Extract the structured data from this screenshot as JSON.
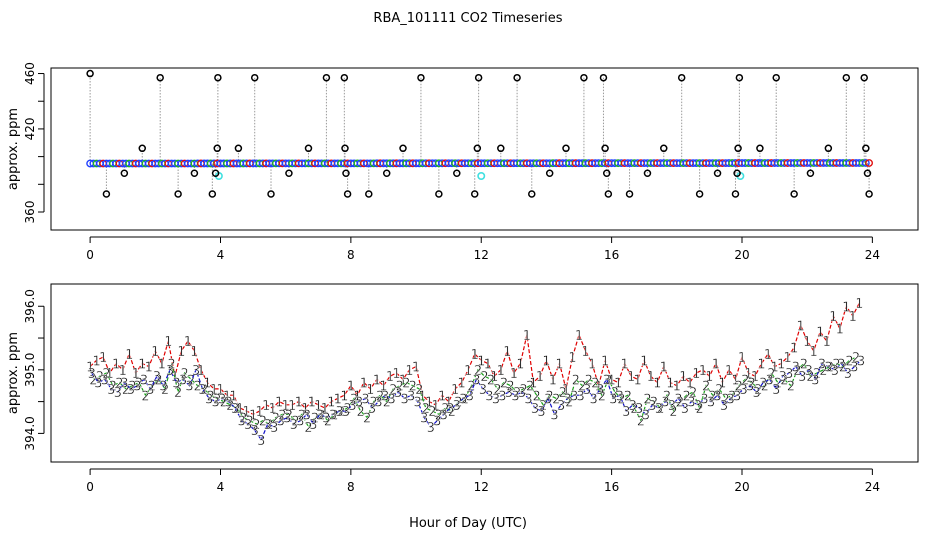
{
  "title": "RBA_101111  CO2 Timeseries",
  "xlabel": "Hour of Day (UTC)",
  "colors": {
    "frame": "#000000",
    "grey_line": "#9a9a9a",
    "series1": "#e00000",
    "series2": "#1aa01a",
    "series3": "#1010c8",
    "marker_blue": "#2040ff",
    "marker_cyan": "#40e0e0",
    "marker_green": "#20b020",
    "marker_red": "#e01010"
  },
  "chart_data": [
    {
      "type": "scatter",
      "name": "top-panel",
      "ylabel": "approx. ppm",
      "xlim": [
        -1.2,
        25.4
      ],
      "ylim": [
        347,
        464
      ],
      "xticks": [
        0,
        4,
        8,
        12,
        16,
        20,
        24
      ],
      "xtick_labels": [
        "0",
        "4",
        "8",
        "12",
        "16",
        "20",
        "24"
      ],
      "yticks": [
        360,
        380,
        400,
        420,
        440,
        460
      ],
      "ytick_labels": [
        "360",
        "",
        "",
        "420",
        "",
        "460"
      ],
      "baseline": {
        "start_ppm": 395.0,
        "end_ppm": 395.4,
        "spacing_h": 0.1
      },
      "cyan_points": [
        [
          3.95,
          386
        ],
        [
          12.0,
          386
        ],
        [
          19.95,
          386
        ]
      ],
      "outliers": [
        [
          0.0,
          460
        ],
        [
          0.5,
          373
        ],
        [
          1.05,
          388
        ],
        [
          1.6,
          406
        ],
        [
          2.15,
          457
        ],
        [
          2.7,
          373
        ],
        [
          3.2,
          388
        ],
        [
          3.75,
          373
        ],
        [
          3.85,
          388
        ],
        [
          3.9,
          406
        ],
        [
          3.92,
          457
        ],
        [
          4.55,
          406
        ],
        [
          5.05,
          457
        ],
        [
          5.55,
          373
        ],
        [
          6.1,
          388
        ],
        [
          6.7,
          406
        ],
        [
          7.25,
          457
        ],
        [
          7.8,
          457
        ],
        [
          7.82,
          406
        ],
        [
          7.85,
          388
        ],
        [
          7.9,
          373
        ],
        [
          8.55,
          373
        ],
        [
          9.1,
          388
        ],
        [
          9.6,
          406
        ],
        [
          10.15,
          457
        ],
        [
          10.7,
          373
        ],
        [
          11.25,
          388
        ],
        [
          11.8,
          373
        ],
        [
          11.88,
          406
        ],
        [
          11.92,
          457
        ],
        [
          12.6,
          406
        ],
        [
          13.1,
          457
        ],
        [
          13.55,
          373
        ],
        [
          14.1,
          388
        ],
        [
          14.6,
          406
        ],
        [
          15.15,
          457
        ],
        [
          15.75,
          457
        ],
        [
          15.8,
          406
        ],
        [
          15.85,
          388
        ],
        [
          15.9,
          373
        ],
        [
          16.55,
          373
        ],
        [
          17.1,
          388
        ],
        [
          17.6,
          406
        ],
        [
          18.15,
          457
        ],
        [
          18.7,
          373
        ],
        [
          19.25,
          388
        ],
        [
          19.8,
          373
        ],
        [
          19.85,
          388
        ],
        [
          19.88,
          406
        ],
        [
          19.92,
          457
        ],
        [
          20.55,
          406
        ],
        [
          21.05,
          457
        ],
        [
          21.6,
          373
        ],
        [
          22.1,
          388
        ],
        [
          22.65,
          406
        ],
        [
          23.2,
          457
        ],
        [
          23.75,
          457
        ],
        [
          23.8,
          406
        ],
        [
          23.85,
          388
        ],
        [
          23.9,
          373
        ]
      ]
    },
    {
      "type": "line",
      "name": "bottom-panel",
      "ylabel": "approx. ppm",
      "xlim": [
        -1.2,
        25.4
      ],
      "ylim": [
        393.55,
        396.35
      ],
      "xticks": [
        0,
        4,
        8,
        12,
        16,
        20,
        24
      ],
      "xtick_labels": [
        "0",
        "4",
        "8",
        "12",
        "16",
        "20",
        "24"
      ],
      "yticks": [
        394.0,
        394.5,
        395.0,
        395.5,
        396.0
      ],
      "ytick_labels": [
        "394.0",
        "",
        "395.0",
        "",
        "396.0"
      ],
      "series": [
        {
          "name": "1",
          "x": [
            0.0,
            0.2,
            0.4,
            0.6,
            0.8,
            1.0,
            1.2,
            1.4,
            1.6,
            1.8,
            2.0,
            2.2,
            2.4,
            2.6,
            2.8,
            3.0,
            3.2,
            3.4,
            3.6,
            3.8,
            4.0,
            4.2,
            4.4,
            4.6,
            4.8,
            5.0,
            5.2,
            5.4,
            5.6,
            5.8,
            6.0,
            6.2,
            6.4,
            6.6,
            6.8,
            7.0,
            7.2,
            7.4,
            7.6,
            7.8,
            8.0,
            8.2,
            8.4,
            8.6,
            8.8,
            9.0,
            9.2,
            9.4,
            9.6,
            9.8,
            10.0,
            10.2,
            10.4,
            10.6,
            10.8,
            11.0,
            11.2,
            11.4,
            11.6,
            11.8,
            12.0,
            12.2,
            12.4,
            12.6,
            12.8,
            13.0,
            13.2,
            13.4,
            13.6,
            13.8,
            14.0,
            14.2,
            14.4,
            14.6,
            14.8,
            15.0,
            15.2,
            15.4,
            15.6,
            15.8,
            16.0,
            16.2,
            16.4,
            16.6,
            16.8,
            17.0,
            17.2,
            17.4,
            17.6,
            17.8,
            18.0,
            18.2,
            18.4,
            18.6,
            18.8,
            19.0,
            19.2,
            19.4,
            19.6,
            19.8,
            20.0,
            20.2,
            20.4,
            20.6,
            20.8,
            21.0,
            21.2,
            21.4,
            21.6,
            21.8,
            22.0,
            22.2,
            22.4,
            22.6,
            22.8,
            23.0,
            23.2,
            23.4,
            23.6
          ],
          "values": [
            395.05,
            395.15,
            395.2,
            394.95,
            395.1,
            395.0,
            395.25,
            394.95,
            395.1,
            395.05,
            395.3,
            395.1,
            395.45,
            394.9,
            395.3,
            395.45,
            395.3,
            395.0,
            394.8,
            394.7,
            394.7,
            394.6,
            394.6,
            394.4,
            394.35,
            394.3,
            394.35,
            394.45,
            394.4,
            394.5,
            394.45,
            394.45,
            394.5,
            394.4,
            394.5,
            394.45,
            394.4,
            394.5,
            394.55,
            394.6,
            394.75,
            394.6,
            394.8,
            394.7,
            394.85,
            394.75,
            394.9,
            394.95,
            394.85,
            395.0,
            395.05,
            394.6,
            394.5,
            394.45,
            394.6,
            394.5,
            394.7,
            394.8,
            395.0,
            395.25,
            395.15,
            395.1,
            394.9,
            395.0,
            395.3,
            394.95,
            395.1,
            395.55,
            394.8,
            394.9,
            395.15,
            394.85,
            395.1,
            394.7,
            395.2,
            395.55,
            395.3,
            395.1,
            394.75,
            395.15,
            394.85,
            394.8,
            395.1,
            394.9,
            394.85,
            395.15,
            394.9,
            394.8,
            395.05,
            394.8,
            394.75,
            394.9,
            394.8,
            394.95,
            395.0,
            394.9,
            395.1,
            394.8,
            395.0,
            394.85,
            395.2,
            394.95,
            394.9,
            395.1,
            395.25,
            395.05,
            395.1,
            395.2,
            395.35,
            395.7,
            395.45,
            395.3,
            395.6,
            395.45,
            395.85,
            395.65,
            396.0,
            395.85,
            396.05
          ]
        },
        {
          "name": "2",
          "x": [
            0.1,
            0.3,
            0.5,
            0.7,
            0.9,
            1.1,
            1.3,
            1.5,
            1.7,
            1.9,
            2.1,
            2.3,
            2.5,
            2.7,
            2.9,
            3.1,
            3.3,
            3.5,
            3.7,
            3.9,
            4.1,
            4.3,
            4.5,
            4.7,
            4.9,
            5.1,
            5.3,
            5.5,
            5.7,
            5.9,
            6.1,
            6.3,
            6.5,
            6.7,
            6.9,
            7.1,
            7.3,
            7.5,
            7.7,
            7.9,
            8.1,
            8.3,
            8.5,
            8.7,
            8.9,
            9.1,
            9.3,
            9.5,
            9.7,
            9.9,
            10.1,
            10.3,
            10.5,
            10.7,
            10.9,
            11.1,
            11.3,
            11.5,
            11.7,
            11.9,
            12.1,
            12.3,
            12.5,
            12.7,
            12.9,
            13.1,
            13.3,
            13.5,
            13.7,
            13.9,
            14.1,
            14.3,
            14.5,
            14.7,
            14.9,
            15.1,
            15.3,
            15.5,
            15.7,
            15.9,
            16.1,
            16.3,
            16.5,
            16.7,
            16.9,
            17.1,
            17.3,
            17.5,
            17.7,
            17.9,
            18.1,
            18.3,
            18.5,
            18.7,
            18.9,
            19.1,
            19.3,
            19.5,
            19.7,
            19.9,
            20.1,
            20.3,
            20.5,
            20.7,
            20.9,
            21.1,
            21.3,
            21.5,
            21.7,
            21.9,
            22.1,
            22.3,
            22.5,
            22.7,
            22.9,
            23.1,
            23.3,
            23.5
          ],
          "values": [
            394.85,
            394.9,
            394.95,
            394.75,
            394.8,
            394.7,
            394.75,
            394.8,
            394.6,
            394.75,
            394.85,
            394.7,
            395.1,
            394.65,
            394.95,
            394.85,
            394.75,
            394.7,
            394.6,
            394.55,
            394.5,
            394.45,
            394.4,
            394.25,
            394.2,
            394.15,
            394.2,
            394.15,
            394.25,
            394.3,
            394.3,
            394.2,
            394.3,
            394.1,
            394.25,
            394.3,
            394.2,
            394.3,
            394.35,
            394.4,
            394.55,
            394.35,
            394.25,
            394.5,
            394.6,
            394.5,
            394.7,
            394.75,
            394.8,
            394.75,
            394.7,
            394.4,
            394.35,
            394.3,
            394.4,
            394.35,
            394.5,
            394.55,
            394.75,
            395.0,
            394.9,
            394.85,
            394.7,
            394.8,
            394.75,
            394.65,
            394.7,
            394.75,
            394.6,
            394.45,
            394.6,
            394.55,
            394.65,
            394.5,
            394.85,
            394.75,
            394.85,
            394.8,
            394.6,
            394.85,
            394.65,
            394.55,
            394.6,
            394.4,
            394.2,
            394.55,
            394.5,
            394.4,
            394.6,
            394.35,
            394.5,
            394.6,
            394.65,
            394.4,
            394.75,
            394.6,
            394.7,
            394.55,
            394.6,
            394.75,
            394.85,
            394.8,
            394.7,
            394.75,
            394.95,
            394.8,
            394.85,
            394.75,
            395.0,
            395.1,
            394.9,
            394.95,
            395.0,
            395.05,
            395.1,
            395.05,
            395.15,
            395.2
          ]
        },
        {
          "name": "3",
          "x": [
            0.05,
            0.25,
            0.45,
            0.65,
            0.85,
            1.05,
            1.25,
            1.45,
            1.65,
            1.85,
            2.05,
            2.25,
            2.45,
            2.65,
            2.85,
            3.05,
            3.25,
            3.45,
            3.65,
            3.85,
            4.05,
            4.25,
            4.45,
            4.65,
            4.85,
            5.05,
            5.25,
            5.45,
            5.65,
            5.85,
            6.05,
            6.25,
            6.45,
            6.65,
            6.85,
            7.05,
            7.25,
            7.45,
            7.65,
            7.85,
            8.05,
            8.25,
            8.45,
            8.65,
            8.85,
            9.05,
            9.25,
            9.45,
            9.65,
            9.85,
            10.05,
            10.25,
            10.45,
            10.65,
            10.85,
            11.05,
            11.25,
            11.45,
            11.65,
            11.85,
            12.05,
            12.25,
            12.45,
            12.65,
            12.85,
            13.05,
            13.25,
            13.45,
            13.65,
            13.85,
            14.05,
            14.25,
            14.45,
            14.65,
            14.85,
            15.05,
            15.25,
            15.45,
            15.65,
            15.85,
            16.05,
            16.25,
            16.45,
            16.65,
            16.85,
            17.05,
            17.25,
            17.45,
            17.65,
            17.85,
            18.05,
            18.25,
            18.45,
            18.65,
            18.85,
            19.05,
            19.25,
            19.45,
            19.65,
            19.85,
            20.05,
            20.25,
            20.45,
            20.65,
            20.85,
            21.05,
            21.25,
            21.45,
            21.65,
            21.85,
            22.05,
            22.25,
            22.45,
            22.65,
            22.85,
            23.05,
            23.25,
            23.45,
            23.65
          ],
          "values": [
            394.95,
            394.8,
            394.85,
            394.7,
            394.65,
            394.8,
            394.7,
            394.75,
            394.85,
            394.7,
            394.9,
            394.75,
            395.0,
            394.8,
            394.85,
            394.75,
            395.0,
            394.7,
            394.55,
            394.5,
            394.55,
            394.5,
            394.4,
            394.2,
            394.15,
            394.05,
            393.9,
            394.15,
            394.1,
            394.2,
            394.25,
            394.15,
            394.2,
            394.3,
            394.15,
            394.3,
            394.25,
            394.3,
            394.35,
            394.35,
            394.45,
            394.5,
            394.55,
            394.4,
            394.5,
            394.6,
            394.55,
            394.65,
            394.55,
            394.6,
            394.5,
            394.25,
            394.1,
            394.2,
            394.3,
            394.4,
            394.45,
            394.55,
            394.6,
            394.85,
            394.7,
            394.6,
            394.55,
            394.6,
            394.65,
            394.6,
            394.65,
            394.55,
            394.4,
            394.35,
            394.55,
            394.3,
            394.45,
            394.55,
            394.6,
            394.6,
            394.7,
            394.55,
            394.7,
            394.85,
            394.55,
            394.6,
            394.35,
            394.45,
            394.4,
            394.3,
            394.45,
            394.4,
            394.5,
            394.45,
            394.55,
            394.4,
            394.5,
            394.45,
            394.55,
            394.5,
            394.6,
            394.45,
            394.55,
            394.6,
            394.7,
            394.75,
            394.65,
            394.8,
            394.85,
            394.7,
            394.9,
            394.95,
            395.05,
            394.9,
            395.0,
            394.85,
            395.1,
            395.05,
            395.0,
            395.1,
            394.95,
            395.05,
            395.15
          ]
        }
      ]
    }
  ]
}
